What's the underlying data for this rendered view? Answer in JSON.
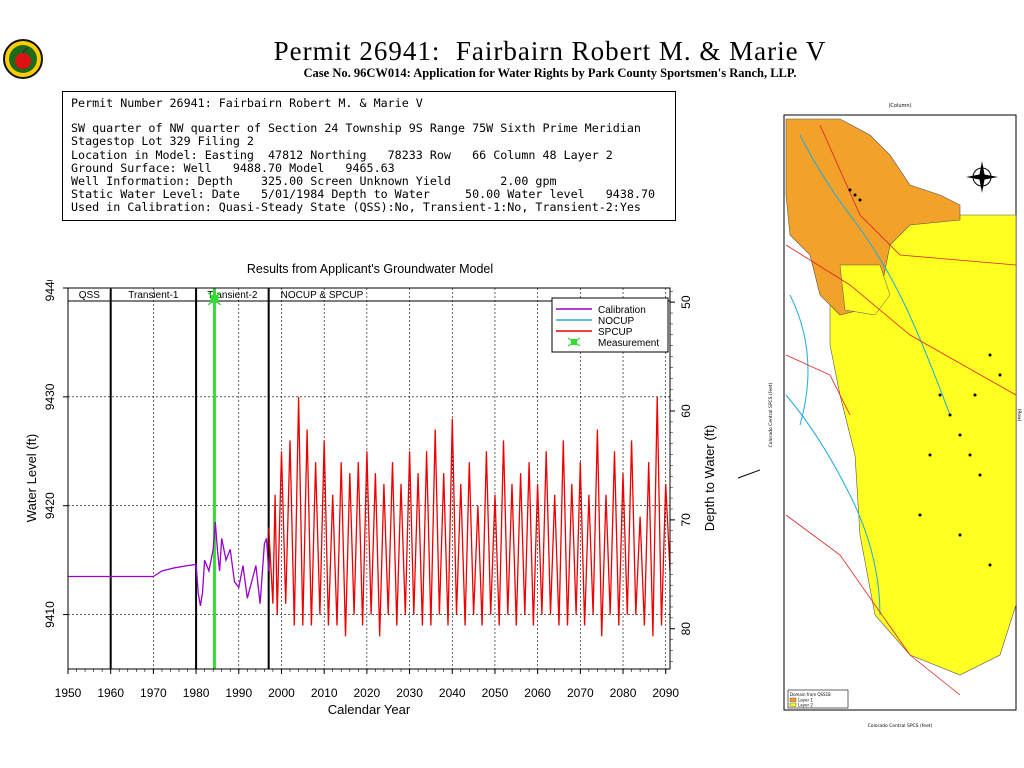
{
  "header": {
    "title": "Permit 26941:  Fairbairn Robert M. & Marie V",
    "subtitle": "Case No. 96CW014: Application for Water Rights by Park County Sportsmen's Ranch, LLP."
  },
  "info": {
    "lines": [
      "Permit Number 26941: Fairbairn Robert M. & Marie V",
      "",
      "SW quarter of NW quarter of Section 24 Township 9S Range 75W Sixth Prime Meridian",
      "Stagestop Lot 329 Filing 2",
      "Location in Model: Easting  47812 Northing   78233 Row   66 Column 48 Layer 2",
      "Ground Surface: Well   9488.70 Model   9465.63",
      "Well Information: Depth    325.00 Screen Unknown Yield       2.00 gpm",
      "Static Water Level: Date   5/01/1984 Depth to Water     50.00 Water level   9438.70",
      "Used in Calibration: Quasi-Steady State (QSS):No, Transient-1:No, Transient-2:Yes"
    ]
  },
  "colors": {
    "calibration": "#9900cc",
    "nocup": "#33aacc",
    "spcup": "#ee0000",
    "measurement": "#33dd33",
    "layer1": "#f2a12b",
    "layer2": "#ffff22"
  },
  "chart_data": {
    "type": "line",
    "title": "Results from Applicant's Groundwater Model",
    "xlabel": "Calendar Year",
    "ylabel": "Water Level (ft)",
    "y2label": "Depth to Water (ft)",
    "xlim": [
      1950,
      2091
    ],
    "ylim": [
      9405,
      9440
    ],
    "y2lim": [
      83.7,
      48.7
    ],
    "xticks": [
      1950,
      1960,
      1970,
      1980,
      1990,
      2000,
      2010,
      2020,
      2030,
      2040,
      2050,
      2060,
      2070,
      2080,
      2090
    ],
    "yticks": [
      9410,
      9420,
      9430,
      9440
    ],
    "y2ticks": [
      50,
      60,
      70,
      80
    ],
    "grid": true,
    "legend": {
      "position": "top-right",
      "entries": [
        "Calibration",
        "NOCUP",
        "SPCUP",
        "Measurement"
      ]
    },
    "periods": [
      {
        "label": "QSS",
        "start": 1950,
        "end": 1960
      },
      {
        "label": "Transient-1",
        "start": 1960,
        "end": 1980
      },
      {
        "label": "Transient-2",
        "start": 1980,
        "end": 1997
      },
      {
        "label": "NOCUP  &  SPCUP",
        "start": 1997,
        "end": 2091
      }
    ],
    "measurement": {
      "x": 1984.3,
      "y": 9439.0
    },
    "series": [
      {
        "name": "Calibration",
        "x": [
          1950,
          1960,
          1970,
          1972,
          1975,
          1978,
          1980,
          1980.5,
          1981,
          1981.5,
          1982,
          1983,
          1984,
          1984.5,
          1985,
          1985.5,
          1986,
          1987,
          1988,
          1989,
          1990,
          1991,
          1992,
          1993,
          1994,
          1995,
          1996,
          1996.5,
          1997
        ],
        "y": [
          9413.5,
          9413.5,
          9413.5,
          9414.0,
          9414.3,
          9414.5,
          9414.6,
          9412.0,
          9410.8,
          9412.0,
          9415.0,
          9414.0,
          9416.0,
          9418.5,
          9416.0,
          9414.0,
          9417.0,
          9415.0,
          9416.0,
          9413.0,
          9412.5,
          9414.5,
          9411.5,
          9413.0,
          9414.5,
          9411.0,
          9416.5,
          9417.0,
          9414.0
        ]
      },
      {
        "name": "SPCUP",
        "x": [
          1997,
          1998,
          1998.5,
          1999,
          2000,
          2001,
          2002,
          2003,
          2004,
          2005,
          2006,
          2007,
          2008,
          2009,
          2010,
          2011,
          2012,
          2013,
          2014,
          2015,
          2016,
          2017,
          2018,
          2019,
          2020,
          2021,
          2022,
          2023,
          2024,
          2025,
          2026,
          2027,
          2028,
          2029,
          2030,
          2031,
          2032,
          2033,
          2034,
          2035,
          2036,
          2037,
          2038,
          2039,
          2040,
          2041,
          2042,
          2043,
          2044,
          2045,
          2046,
          2047,
          2048,
          2049,
          2050,
          2051,
          2052,
          2053,
          2054,
          2055,
          2056,
          2057,
          2058,
          2059,
          2060,
          2061,
          2062,
          2063,
          2064,
          2065,
          2066,
          2067,
          2068,
          2069,
          2070,
          2071,
          2072,
          2073,
          2074,
          2075,
          2076,
          2077,
          2078,
          2079,
          2080,
          2081,
          2082,
          2083,
          2084,
          2085,
          2086,
          2087,
          2088,
          2089,
          2090,
          2091
        ],
        "y": [
          9418,
          9411,
          9421,
          9410,
          9425,
          9411,
          9426,
          9409,
          9430,
          9409,
          9427,
          9409,
          9424,
          9410,
          9426,
          9409,
          9421,
          9409,
          9424,
          9408,
          9423,
          9410,
          9424,
          9409,
          9425,
          9410,
          9423,
          9408,
          9422,
          9410,
          9424,
          9409,
          9422,
          9410,
          9425,
          9410,
          9423,
          9409,
          9425,
          9409,
          9427,
          9410,
          9423,
          9409,
          9428,
          9410,
          9422,
          9409,
          9424,
          9410,
          9420,
          9409,
          9425,
          9410,
          9421,
          9409,
          9426,
          9410,
          9422,
          9409,
          9423,
          9410,
          9424,
          9409,
          9422,
          9410,
          9425,
          9410,
          9421,
          9409,
          9426,
          9409,
          9422,
          9410,
          9424,
          9409,
          9421,
          9410,
          9427,
          9408,
          9421,
          9410,
          9425,
          9409,
          9423,
          9410,
          9426,
          9410,
          9419,
          9409,
          9424,
          9408,
          9430,
          9409,
          9422,
          9414
        ]
      }
    ]
  },
  "map": {
    "title_top": "(Column)",
    "axis_left": "Colorado Central SPCS (feet)",
    "axis_bottom": "Colorado Central SPCS (feet)",
    "axis_right": "(Row)",
    "legend_title": "Domain from QSS18",
    "legend_items": [
      "Layer 1",
      "Layer 2"
    ]
  }
}
